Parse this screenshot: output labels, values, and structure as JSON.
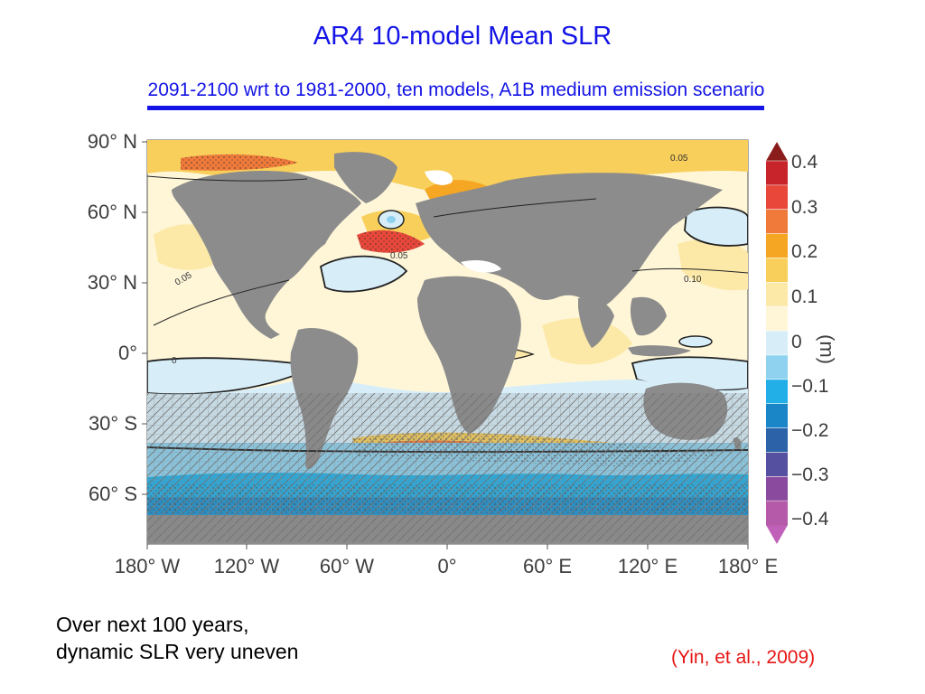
{
  "title": "AR4 10-model Mean SLR",
  "subtitle": "2091-2100 wrt to 1981-2000, ten models, A1B medium emission scenario",
  "map": {
    "lat_labels": [
      "90° N",
      "60° N",
      "30° N",
      "0°",
      "30° S",
      "60° S"
    ],
    "lon_labels": [
      "180° W",
      "120° W",
      "60° W",
      "0°",
      "60° E",
      "120° E",
      "180° E"
    ],
    "contour_labels": [
      "0.05",
      "0.05",
      "0.05",
      "0.10",
      "0"
    ],
    "land_color": "#8c8c8c",
    "ocean_base_color": "#fff6d8",
    "shaded_region": "30° S – 90° S hatched"
  },
  "colorbar": {
    "unit": "(m)",
    "tick_labels": [
      "0.4",
      "0.3",
      "0.2",
      "0.1",
      "0",
      "−0.1",
      "−0.2",
      "−0.3",
      "−0.4"
    ],
    "colors": [
      "#c8242b",
      "#e8473a",
      "#f07a3a",
      "#f5a623",
      "#f8cf5a",
      "#fce9a8",
      "#fff6d8",
      "#d7eef9",
      "#8ed2ef",
      "#22aee6",
      "#1a86c8",
      "#2b62a8",
      "#5650a0",
      "#8a4a9e",
      "#b45aa8"
    ],
    "top_arrow_color": "#8b1c1c",
    "bottom_arrow_color": "#c060b8"
  },
  "note_lines": [
    "Over next 100 years,",
    "dynamic SLR very uneven"
  ],
  "citation": "(Yin, et al., 2009)"
}
